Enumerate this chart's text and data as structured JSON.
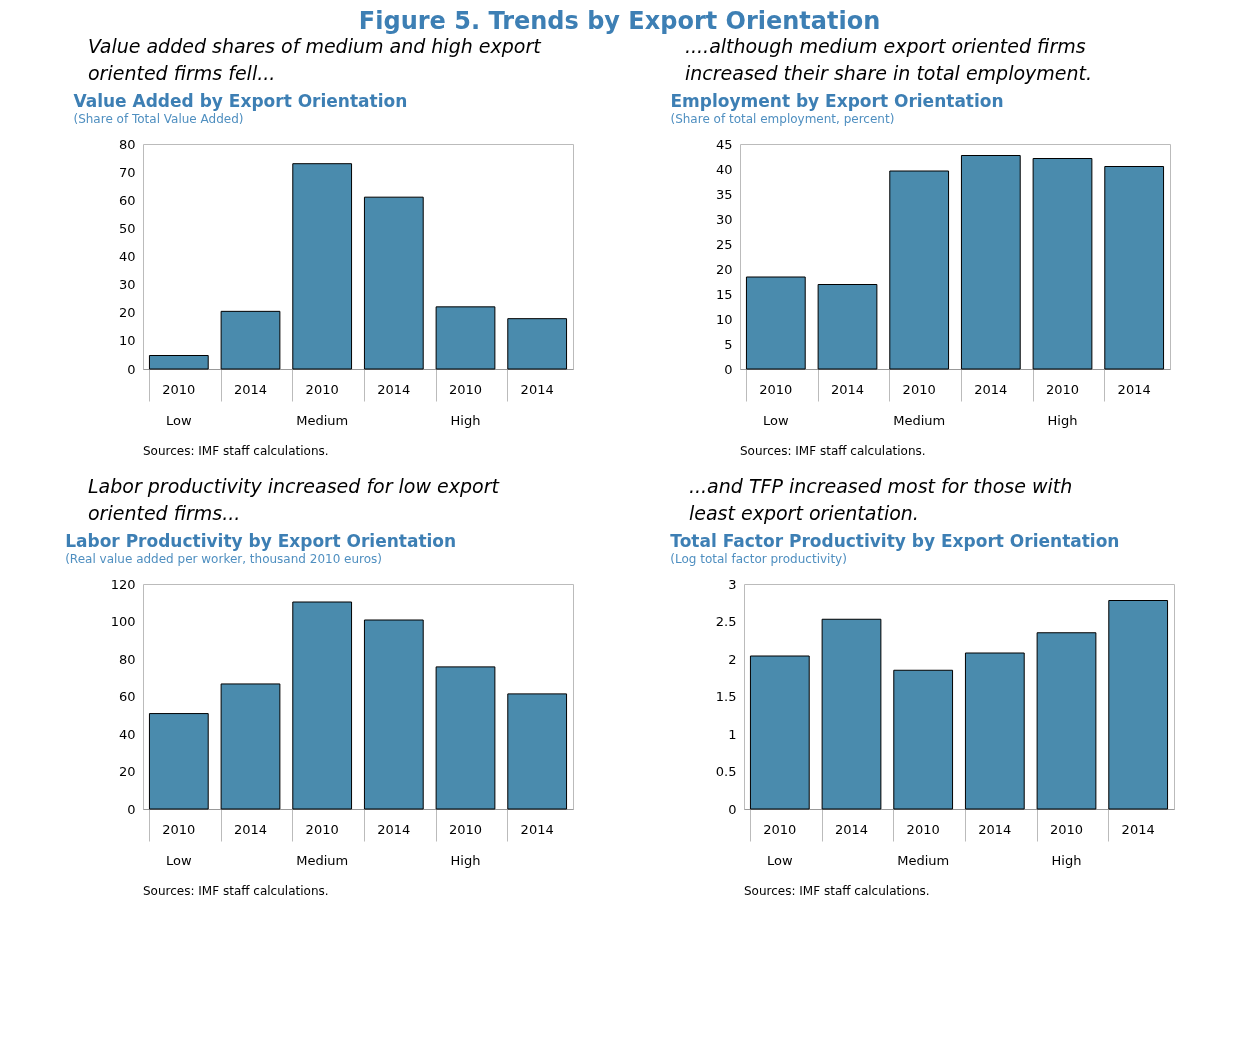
{
  "chart_data": [
    {
      "type": "other",
      "title": "Figure 5. Trends by Export Orientation"
    },
    {
      "type": "bar",
      "title": "Value Added by Export Orientation",
      "subtitle": "(Share of Total Value Added)",
      "categories": [
        "2010",
        "2014",
        "2010",
        "2014",
        "2010",
        "2014"
      ],
      "values": [
        4.8,
        20.5,
        73,
        61.1,
        22.1,
        17.9
      ],
      "color": "#4a8bad",
      "ylim": [
        0,
        80
      ],
      "yticks": [
        0,
        10,
        20,
        30,
        40,
        50,
        60,
        70,
        80
      ],
      "annotations": [
        "Value added shares of medium and high export oriented firms fell...",
        "Low",
        "Medium",
        "High",
        "Sources: IMF staff calculations."
      ]
    },
    {
      "type": "bar",
      "title": "Employment by Export Orientation",
      "subtitle": "(Share of total employment, percent)",
      "categories": [
        "2010",
        "2014",
        "2010",
        "2014",
        "2010",
        "2014"
      ],
      "values": [
        18.4,
        16.9,
        39.6,
        42.7,
        42.1,
        40.5
      ],
      "color": "#4a8bad",
      "ylim": [
        0,
        45
      ],
      "yticks": [
        0,
        5,
        10,
        15,
        20,
        25,
        30,
        35,
        40,
        45
      ],
      "annotations": [
        "....although medium export oriented firms increased their share in total employment.",
        "Low",
        "Medium",
        "High",
        "Sources: IMF staff calculations."
      ]
    },
    {
      "type": "bar",
      "title": "Labor Productivity by Export Orientation",
      "subtitle": "(Real value added per worker, thousand 2010 euros)",
      "categories": [
        "2010",
        "2014",
        "2010",
        "2014",
        "2010",
        "2014"
      ],
      "values": [
        50.9,
        66.7,
        110.4,
        100.8,
        75.8,
        61.4
      ],
      "color": "#4a8bad",
      "ylim": [
        0,
        120
      ],
      "yticks": [
        0,
        20,
        40,
        60,
        80,
        100,
        120
      ],
      "annotations": [
        "Labor productivity increased for low export oriented firms...",
        "Low",
        "Medium",
        "High",
        "Sources: IMF staff calculations."
      ]
    },
    {
      "type": "bar",
      "title": "Total Factor Productivity by Export Orientation",
      "subtitle": "(Log total factor productivity)",
      "categories": [
        "2010",
        "2014",
        "2010",
        "2014",
        "2010",
        "2014"
      ],
      "values": [
        2.04,
        2.53,
        1.85,
        2.08,
        2.35,
        2.78
      ],
      "color": "#4a8bad",
      "ylim": [
        0,
        3
      ],
      "yticks": [
        0,
        0.5,
        1,
        1.5,
        2,
        2.5,
        3
      ],
      "annotations": [
        "...and TFP increased most for those with least export orientation.",
        "Low",
        "Medium",
        "High",
        "Sources: IMF staff calculations."
      ]
    }
  ]
}
